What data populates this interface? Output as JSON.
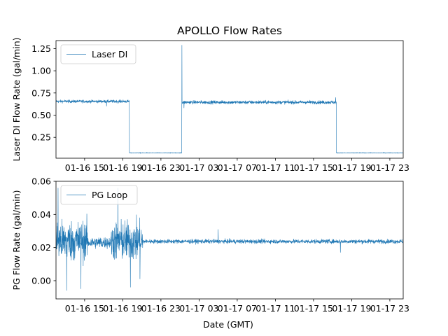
{
  "chart_data": {
    "type": "line",
    "title": "APOLLO Flow Rates",
    "xlabel": "Date (GMT)",
    "color": "#1f77b4",
    "x_unit": "hours since 01-16 12:00 GMT",
    "xlim": [
      0,
      36.4
    ],
    "x_ticks": [
      {
        "x": 3,
        "label": "01-16 15"
      },
      {
        "x": 7,
        "label": "01-16 19"
      },
      {
        "x": 11,
        "label": "01-16 23"
      },
      {
        "x": 15,
        "label": "01-17 03"
      },
      {
        "x": 19,
        "label": "01-17 07"
      },
      {
        "x": 23,
        "label": "01-17 11"
      },
      {
        "x": 27,
        "label": "01-17 15"
      },
      {
        "x": 31,
        "label": "01-17 19"
      },
      {
        "x": 35,
        "label": "01-17 23"
      }
    ],
    "panels": [
      {
        "name": "laser",
        "ylabel": "Laser DI Flow Rate (gal/min)",
        "legend": "Laser DI",
        "legend_loc": "upper-left",
        "ylim": [
          0.015,
          1.34
        ],
        "y_ticks": [
          0.25,
          0.5,
          0.75,
          1.0,
          1.25
        ],
        "y_tick_labels": [
          "0.25",
          "0.50",
          "0.75",
          "1.00",
          "1.25"
        ],
        "segments": [
          {
            "x_start": 0.0,
            "x_end": 7.7,
            "mean": 0.655,
            "noise": 0.012
          },
          {
            "x_start": 7.7,
            "x_end": 13.2,
            "mean": 0.075,
            "noise": 0.002
          },
          {
            "x_start": 13.2,
            "x_end": 29.4,
            "mean": 0.645,
            "noise": 0.014
          },
          {
            "x_start": 29.4,
            "x_end": 36.4,
            "mean": 0.075,
            "noise": 0.002
          }
        ],
        "spikes": [
          {
            "x": 5.3,
            "y": 0.6
          },
          {
            "x": 13.2,
            "y": 1.29
          },
          {
            "x": 13.4,
            "y": 0.58
          },
          {
            "x": 29.3,
            "y": 0.7
          }
        ]
      },
      {
        "name": "pg",
        "ylabel": "PG Flow Rate (gal/min)",
        "legend": "PG Loop",
        "legend_loc": "upper-left",
        "ylim": [
          -0.011,
          0.06
        ],
        "y_ticks": [
          0.0,
          0.02,
          0.04,
          0.06
        ],
        "y_tick_labels": [
          "0.00",
          "0.02",
          "0.04",
          "0.06"
        ],
        "segments": [
          {
            "x_start": 0.0,
            "x_end": 3.3,
            "mean": 0.024,
            "noise": 0.0085
          },
          {
            "x_start": 3.3,
            "x_end": 5.8,
            "mean": 0.023,
            "noise": 0.0025
          },
          {
            "x_start": 5.8,
            "x_end": 9.1,
            "mean": 0.024,
            "noise": 0.0085
          },
          {
            "x_start": 9.1,
            "x_end": 36.4,
            "mean": 0.0237,
            "noise": 0.0009
          }
        ],
        "spikes": [
          {
            "x": 0.2,
            "y": 0.056
          },
          {
            "x": 1.1,
            "y": -0.006
          },
          {
            "x": 2.6,
            "y": -0.005
          },
          {
            "x": 6.5,
            "y": 0.056
          },
          {
            "x": 7.8,
            "y": -0.004
          },
          {
            "x": 8.8,
            "y": 0.001
          },
          {
            "x": 17.0,
            "y": 0.031
          },
          {
            "x": 29.8,
            "y": 0.017
          }
        ]
      }
    ]
  }
}
